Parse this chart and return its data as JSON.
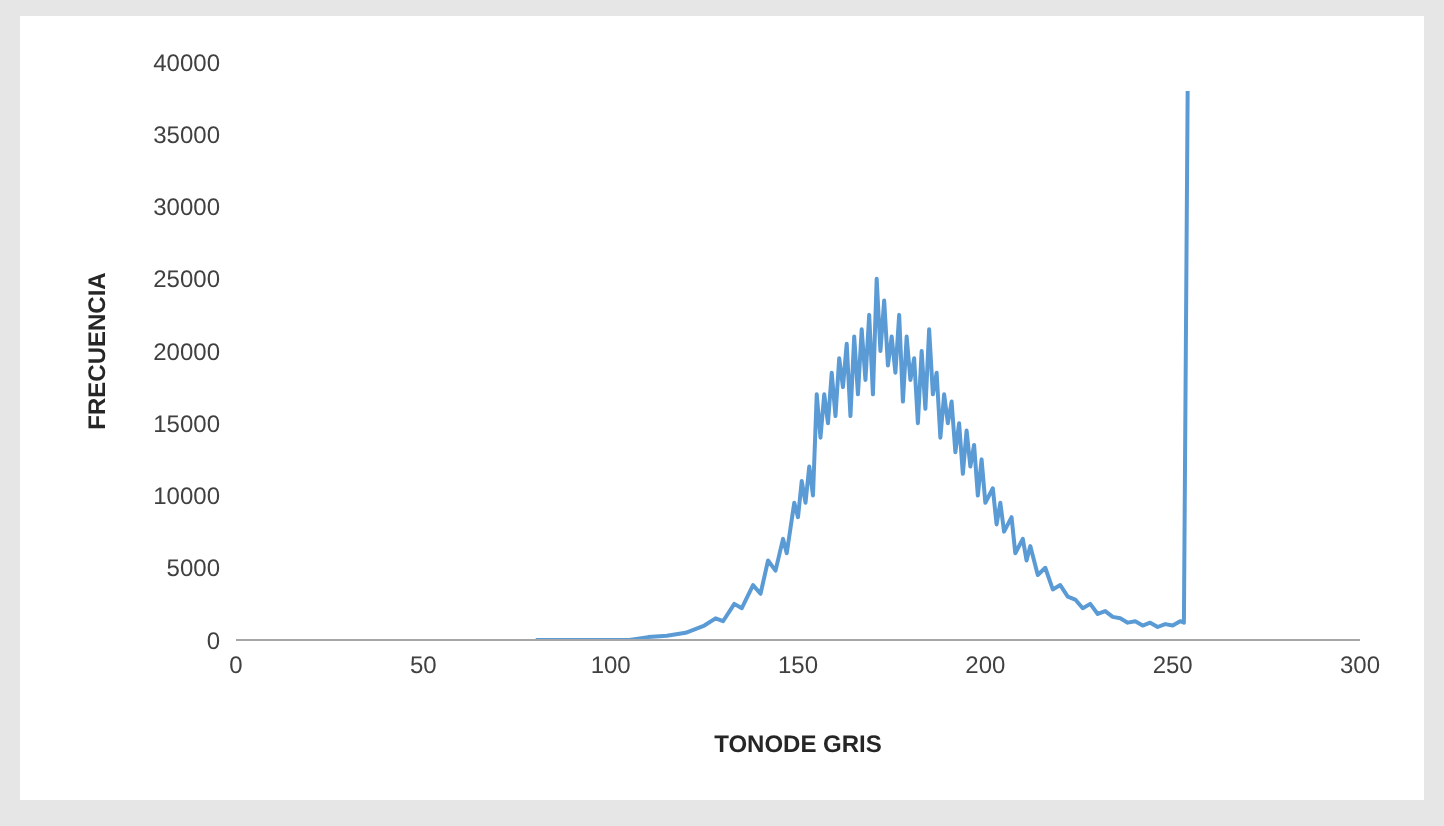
{
  "chart_data": {
    "type": "line",
    "xlabel": "TONODE GRIS",
    "ylabel": "FRECUENCIA",
    "x": [
      80,
      105,
      110,
      115,
      120,
      125,
      128,
      130,
      133,
      135,
      138,
      140,
      142,
      144,
      146,
      147,
      149,
      150,
      151,
      152,
      153,
      154,
      155,
      156,
      157,
      158,
      159,
      160,
      161,
      162,
      163,
      164,
      165,
      166,
      167,
      168,
      169,
      170,
      171,
      172,
      173,
      174,
      175,
      176,
      177,
      178,
      179,
      180,
      181,
      182,
      183,
      184,
      185,
      186,
      187,
      188,
      189,
      190,
      191,
      192,
      193,
      194,
      195,
      196,
      197,
      198,
      199,
      200,
      202,
      203,
      204,
      205,
      207,
      208,
      210,
      211,
      212,
      214,
      216,
      218,
      220,
      222,
      224,
      226,
      228,
      230,
      232,
      234,
      236,
      238,
      240,
      242,
      244,
      246,
      248,
      250,
      252,
      253,
      254
    ],
    "series": [
      {
        "color": "#5b9bd5",
        "values": [
          0,
          0,
          200,
          300,
          500,
          1000,
          1500,
          1300,
          2500,
          2200,
          3800,
          3200,
          5500,
          4800,
          7000,
          6000,
          9500,
          8500,
          11000,
          9500,
          12000,
          10000,
          17000,
          14000,
          17000,
          15000,
          18500,
          15500,
          19500,
          17500,
          20500,
          15500,
          21000,
          17000,
          21500,
          18000,
          22500,
          17000,
          25000,
          20000,
          23500,
          19000,
          21000,
          18500,
          22500,
          16500,
          21000,
          18000,
          19500,
          15000,
          20000,
          16000,
          21500,
          17000,
          18500,
          14000,
          17000,
          15000,
          16500,
          13000,
          15000,
          11500,
          14500,
          12000,
          13500,
          10000,
          12500,
          9500,
          10500,
          8000,
          9500,
          7500,
          8500,
          6000,
          7000,
          5500,
          6500,
          4500,
          5000,
          3500,
          3800,
          3000,
          2800,
          2200,
          2500,
          1800,
          2000,
          1600,
          1500,
          1200,
          1300,
          1000,
          1200,
          900,
          1100,
          1000,
          1300,
          1200,
          38000
        ]
      }
    ],
    "xlim": [
      0,
      300
    ],
    "xticks": [
      0,
      50,
      100,
      150,
      200,
      250,
      300
    ],
    "ylim": [
      0,
      40000
    ],
    "yticks": [
      0,
      5000,
      10000,
      15000,
      20000,
      25000,
      30000,
      35000,
      40000
    ],
    "grid": false,
    "legend": false,
    "marker": "none",
    "line_style": "solid"
  }
}
